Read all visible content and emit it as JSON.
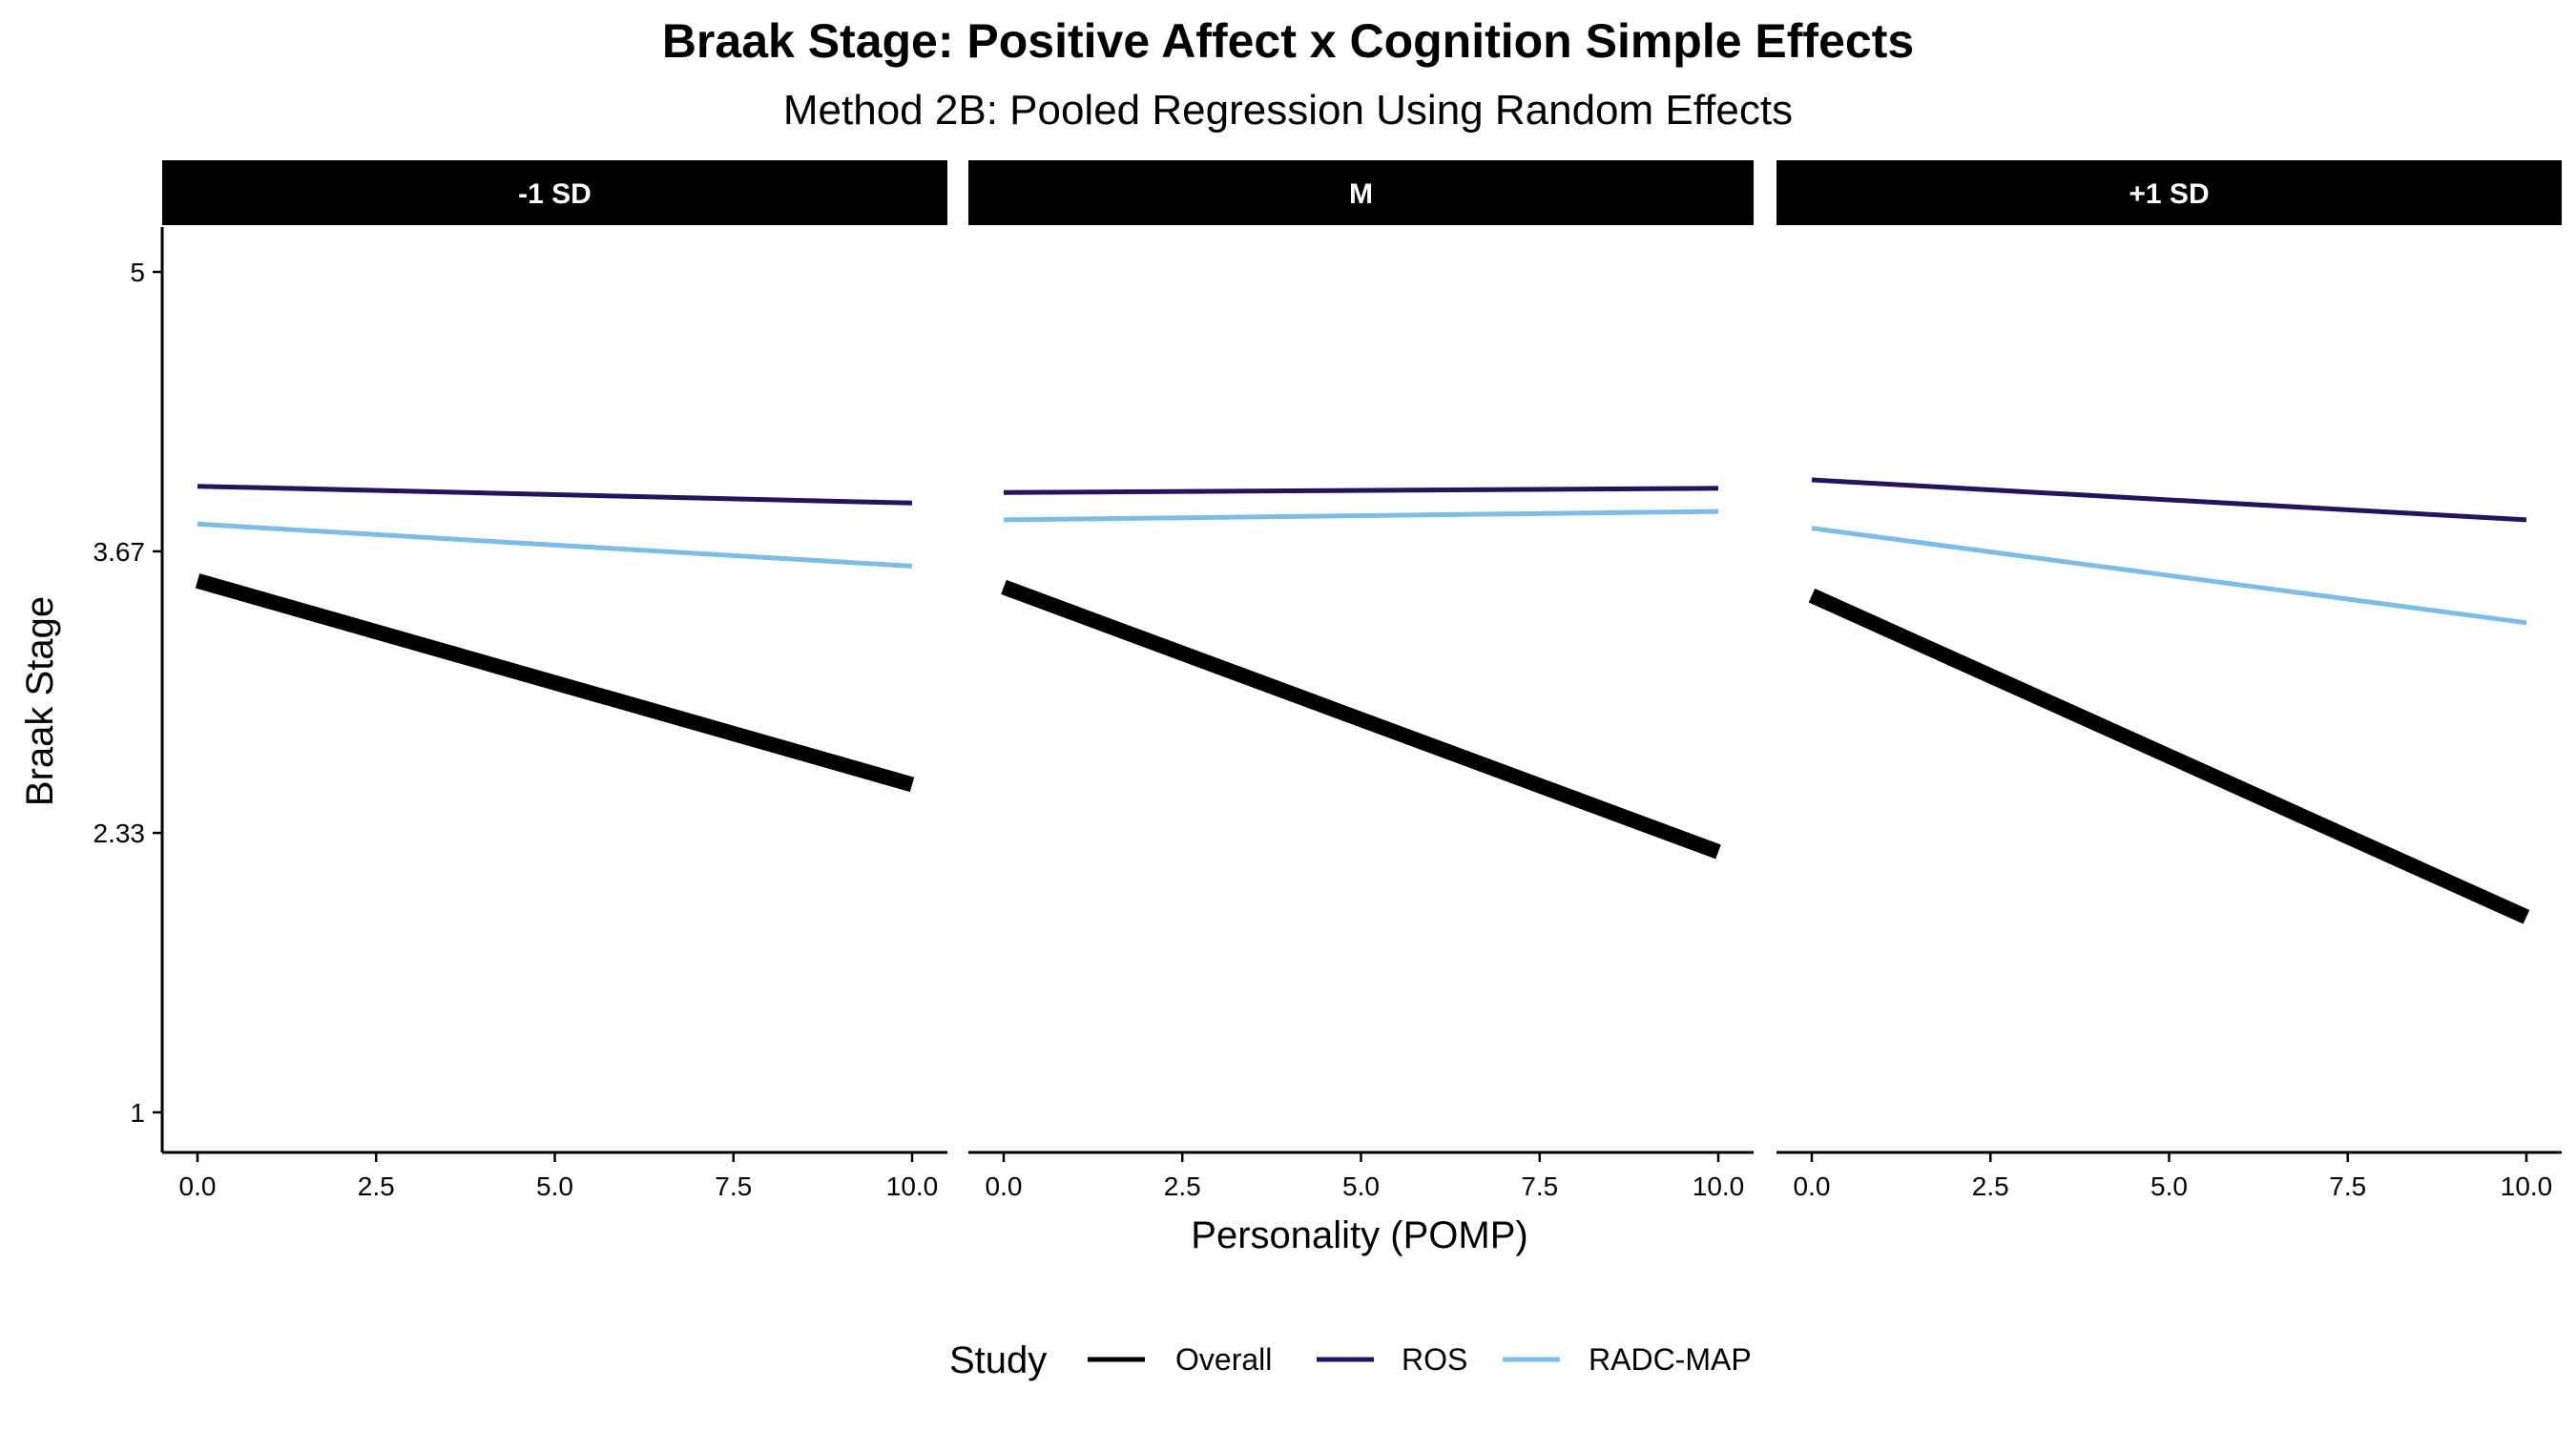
{
  "chart_data": {
    "type": "line",
    "title": "Braak Stage: Positive Affect x Cognition Simple Effects",
    "subtitle": "Method 2B: Pooled Regression Using Random Effects",
    "xlabel": "Personality (POMP)",
    "ylabel": "Braak Stage",
    "xlim": [
      0,
      10
    ],
    "ylim": [
      1,
      5
    ],
    "x_ticks": [
      0,
      2.5,
      5,
      7.5,
      10
    ],
    "x_tick_labels": [
      "0.0",
      "2.5",
      "5.0",
      "7.5",
      "10.0"
    ],
    "y_ticks": [
      1,
      2.33,
      3.67,
      5
    ],
    "y_tick_labels": [
      "1",
      "2.33",
      "3.67",
      "5"
    ],
    "grid": false,
    "legend": {
      "title": "Study",
      "position": "bottom",
      "entries": [
        {
          "name": "Overall",
          "color": "#000000"
        },
        {
          "name": "ROS",
          "color": "#24135f"
        },
        {
          "name": "RADC-MAP",
          "color": "#7bbde6"
        }
      ]
    },
    "panels": [
      {
        "label": "-1 SD",
        "series": [
          {
            "name": "Overall",
            "color": "#000000",
            "x": [
              0,
              10
            ],
            "y": [
              3.53,
              2.56
            ]
          },
          {
            "name": "ROS",
            "color": "#24135f",
            "x": [
              0,
              10
            ],
            "y": [
              3.98,
              3.9
            ]
          },
          {
            "name": "RADC-MAP",
            "color": "#7bbde6",
            "x": [
              0,
              10
            ],
            "y": [
              3.8,
              3.6
            ]
          }
        ]
      },
      {
        "label": "M",
        "series": [
          {
            "name": "Overall",
            "color": "#000000",
            "x": [
              0,
              10
            ],
            "y": [
              3.5,
              2.24
            ]
          },
          {
            "name": "ROS",
            "color": "#24135f",
            "x": [
              0,
              10
            ],
            "y": [
              3.95,
              3.97
            ]
          },
          {
            "name": "RADC-MAP",
            "color": "#7bbde6",
            "x": [
              0,
              10
            ],
            "y": [
              3.82,
              3.86
            ]
          }
        ]
      },
      {
        "label": "+1 SD",
        "series": [
          {
            "name": "Overall",
            "color": "#000000",
            "x": [
              0,
              10
            ],
            "y": [
              3.46,
              1.93
            ]
          },
          {
            "name": "ROS",
            "color": "#24135f",
            "x": [
              0,
              10
            ],
            "y": [
              4.01,
              3.82
            ]
          },
          {
            "name": "RADC-MAP",
            "color": "#7bbde6",
            "x": [
              0,
              10
            ],
            "y": [
              3.78,
              3.33
            ]
          }
        ]
      }
    ]
  }
}
